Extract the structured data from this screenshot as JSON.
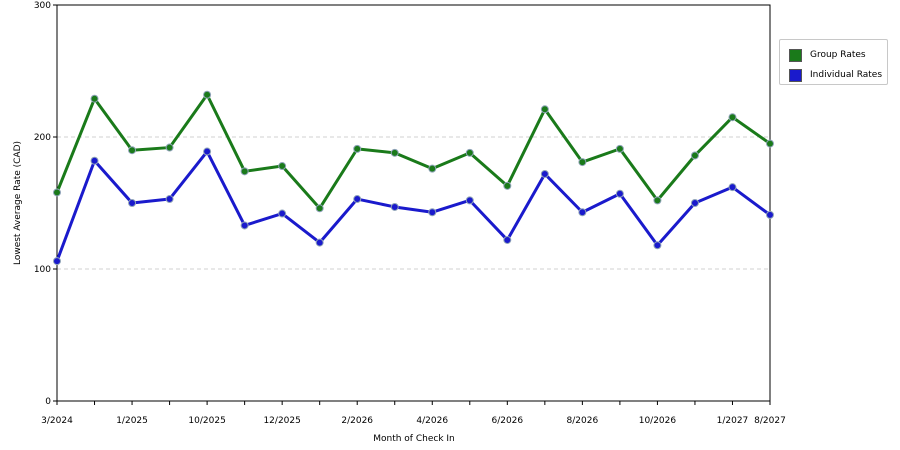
{
  "chart_data": {
    "type": "line",
    "xlabel": "Month of Check In",
    "ylabel": "Lowest Average Rate (CAD)",
    "ylim": [
      0,
      300
    ],
    "yticks": [
      0,
      100,
      200,
      300
    ],
    "grid": "horizontal dashed at 100 and 200",
    "legend_position": "top-right",
    "x_tick_labels": [
      {
        "index": 0,
        "label": "3/2024"
      },
      {
        "index": 2,
        "label": "1/2025"
      },
      {
        "index": 4,
        "label": "10/2025"
      },
      {
        "index": 6,
        "label": "12/2025"
      },
      {
        "index": 8,
        "label": "2/2026"
      },
      {
        "index": 10,
        "label": "4/2026"
      },
      {
        "index": 12,
        "label": "6/2026"
      },
      {
        "index": 14,
        "label": "8/2026"
      },
      {
        "index": 16,
        "label": "10/2026"
      },
      {
        "index": 18,
        "label": "1/2027"
      },
      {
        "index": 19,
        "label": "8/2027"
      }
    ],
    "series": [
      {
        "name": "Group Rates",
        "color": "#1a7a1a",
        "values": [
          158,
          229,
          190,
          192,
          232,
          174,
          178,
          146,
          191,
          188,
          176,
          188,
          163,
          221,
          181,
          191,
          152,
          186,
          215,
          195
        ]
      },
      {
        "name": "Individual Rates",
        "color": "#1a1acc",
        "values": [
          106,
          182,
          150,
          153,
          189,
          133,
          142,
          120,
          153,
          147,
          143,
          152,
          122,
          172,
          143,
          157,
          118,
          150,
          162,
          141
        ]
      }
    ]
  }
}
